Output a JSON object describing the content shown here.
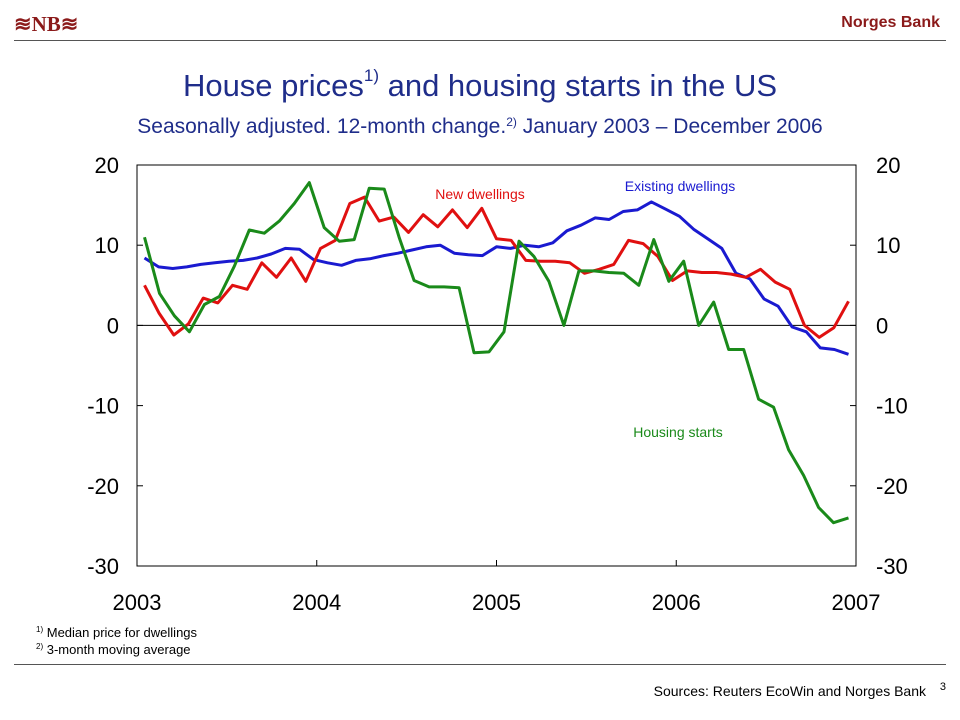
{
  "header": {
    "logo_text": "≋NB≋",
    "bank_name": "Norges Bank"
  },
  "title": {
    "main": "House prices",
    "sup": "1)",
    "rest": " and housing starts in the US"
  },
  "subtitle": {
    "main": "Seasonally adjusted. 12-month change.",
    "sup": "2)",
    "rest": " January 2003 – December 2006"
  },
  "footnotes": {
    "fn1_mark": "1)",
    "fn1_text": " Median price for dwellings",
    "fn2_mark": "2)",
    "fn2_text": " 3-month moving average"
  },
  "sources": "Sources: Reuters EcoWin and Norges Bank",
  "page_number": "3",
  "chart_data": {
    "type": "line",
    "x_start": "2003-01",
    "x_end": "2006-12",
    "x_ticks": [
      "2003",
      "2004",
      "2005",
      "2006",
      "2007"
    ],
    "ylim": [
      -30,
      20
    ],
    "y_ticks": [
      "20",
      "10",
      "0",
      "-10",
      "-20",
      "-30"
    ],
    "y_right_ticks": [
      "20",
      "10",
      "0",
      "-10",
      "-20",
      "-30"
    ],
    "grid": false,
    "series": [
      {
        "name": "Existing dwellings",
        "color": "#1a1ad0",
        "values": [
          8.4,
          7.3,
          7.1,
          7.3,
          7.6,
          7.8,
          8.0,
          8.1,
          8.4,
          8.9,
          9.6,
          9.5,
          8.2,
          7.8,
          7.5,
          8.1,
          8.3,
          8.7,
          9.0,
          9.4,
          9.8,
          10.0,
          9.0,
          8.8,
          8.7,
          9.8,
          9.6,
          10.0,
          9.8,
          10.3,
          11.8,
          12.5,
          13.4,
          13.2,
          14.2,
          14.4,
          15.4,
          14.5,
          13.6,
          12.0,
          10.8,
          9.6,
          6.5,
          5.8,
          3.3,
          2.4,
          -0.2,
          -0.8,
          -2.8,
          -3.0,
          -3.6
        ],
        "label_pos": "top-right"
      },
      {
        "name": "New dwellings",
        "color": "#e01010",
        "values": [
          5.0,
          1.5,
          -1.2,
          0.2,
          3.4,
          2.8,
          5.0,
          4.5,
          7.8,
          6.0,
          8.4,
          5.5,
          9.6,
          10.6,
          15.2,
          16.0,
          13.0,
          13.5,
          11.6,
          13.8,
          12.3,
          14.4,
          12.2,
          14.6,
          10.8,
          10.6,
          8.1,
          8.0,
          8.0,
          7.8,
          6.5,
          7.0,
          7.6,
          10.6,
          10.2,
          8.6,
          5.6,
          6.8,
          6.6,
          6.6,
          6.4,
          6.0,
          7.0,
          5.4,
          4.5,
          0.0,
          -1.5,
          -0.3,
          3.0
        ],
        "label_pos": "top-center"
      },
      {
        "name": "Housing starts",
        "color": "#1a8a1a",
        "values": [
          11.0,
          4.0,
          1.2,
          -0.8,
          2.6,
          3.6,
          7.4,
          11.9,
          11.5,
          13.0,
          15.2,
          17.8,
          12.2,
          10.5,
          10.7,
          17.1,
          17.0,
          11.0,
          5.6,
          4.8,
          4.8,
          4.7,
          -3.4,
          -3.3,
          -0.8,
          10.5,
          8.6,
          5.5,
          0.0,
          6.8,
          6.8,
          6.6,
          6.5,
          5.0,
          10.7,
          5.5,
          8.0,
          0.0,
          2.9,
          -3.0,
          -3.0,
          -9.2,
          -10.2,
          -15.5,
          -18.7,
          -22.7,
          -24.6,
          -24.0
        ],
        "label_pos": "bottom-right"
      }
    ]
  }
}
